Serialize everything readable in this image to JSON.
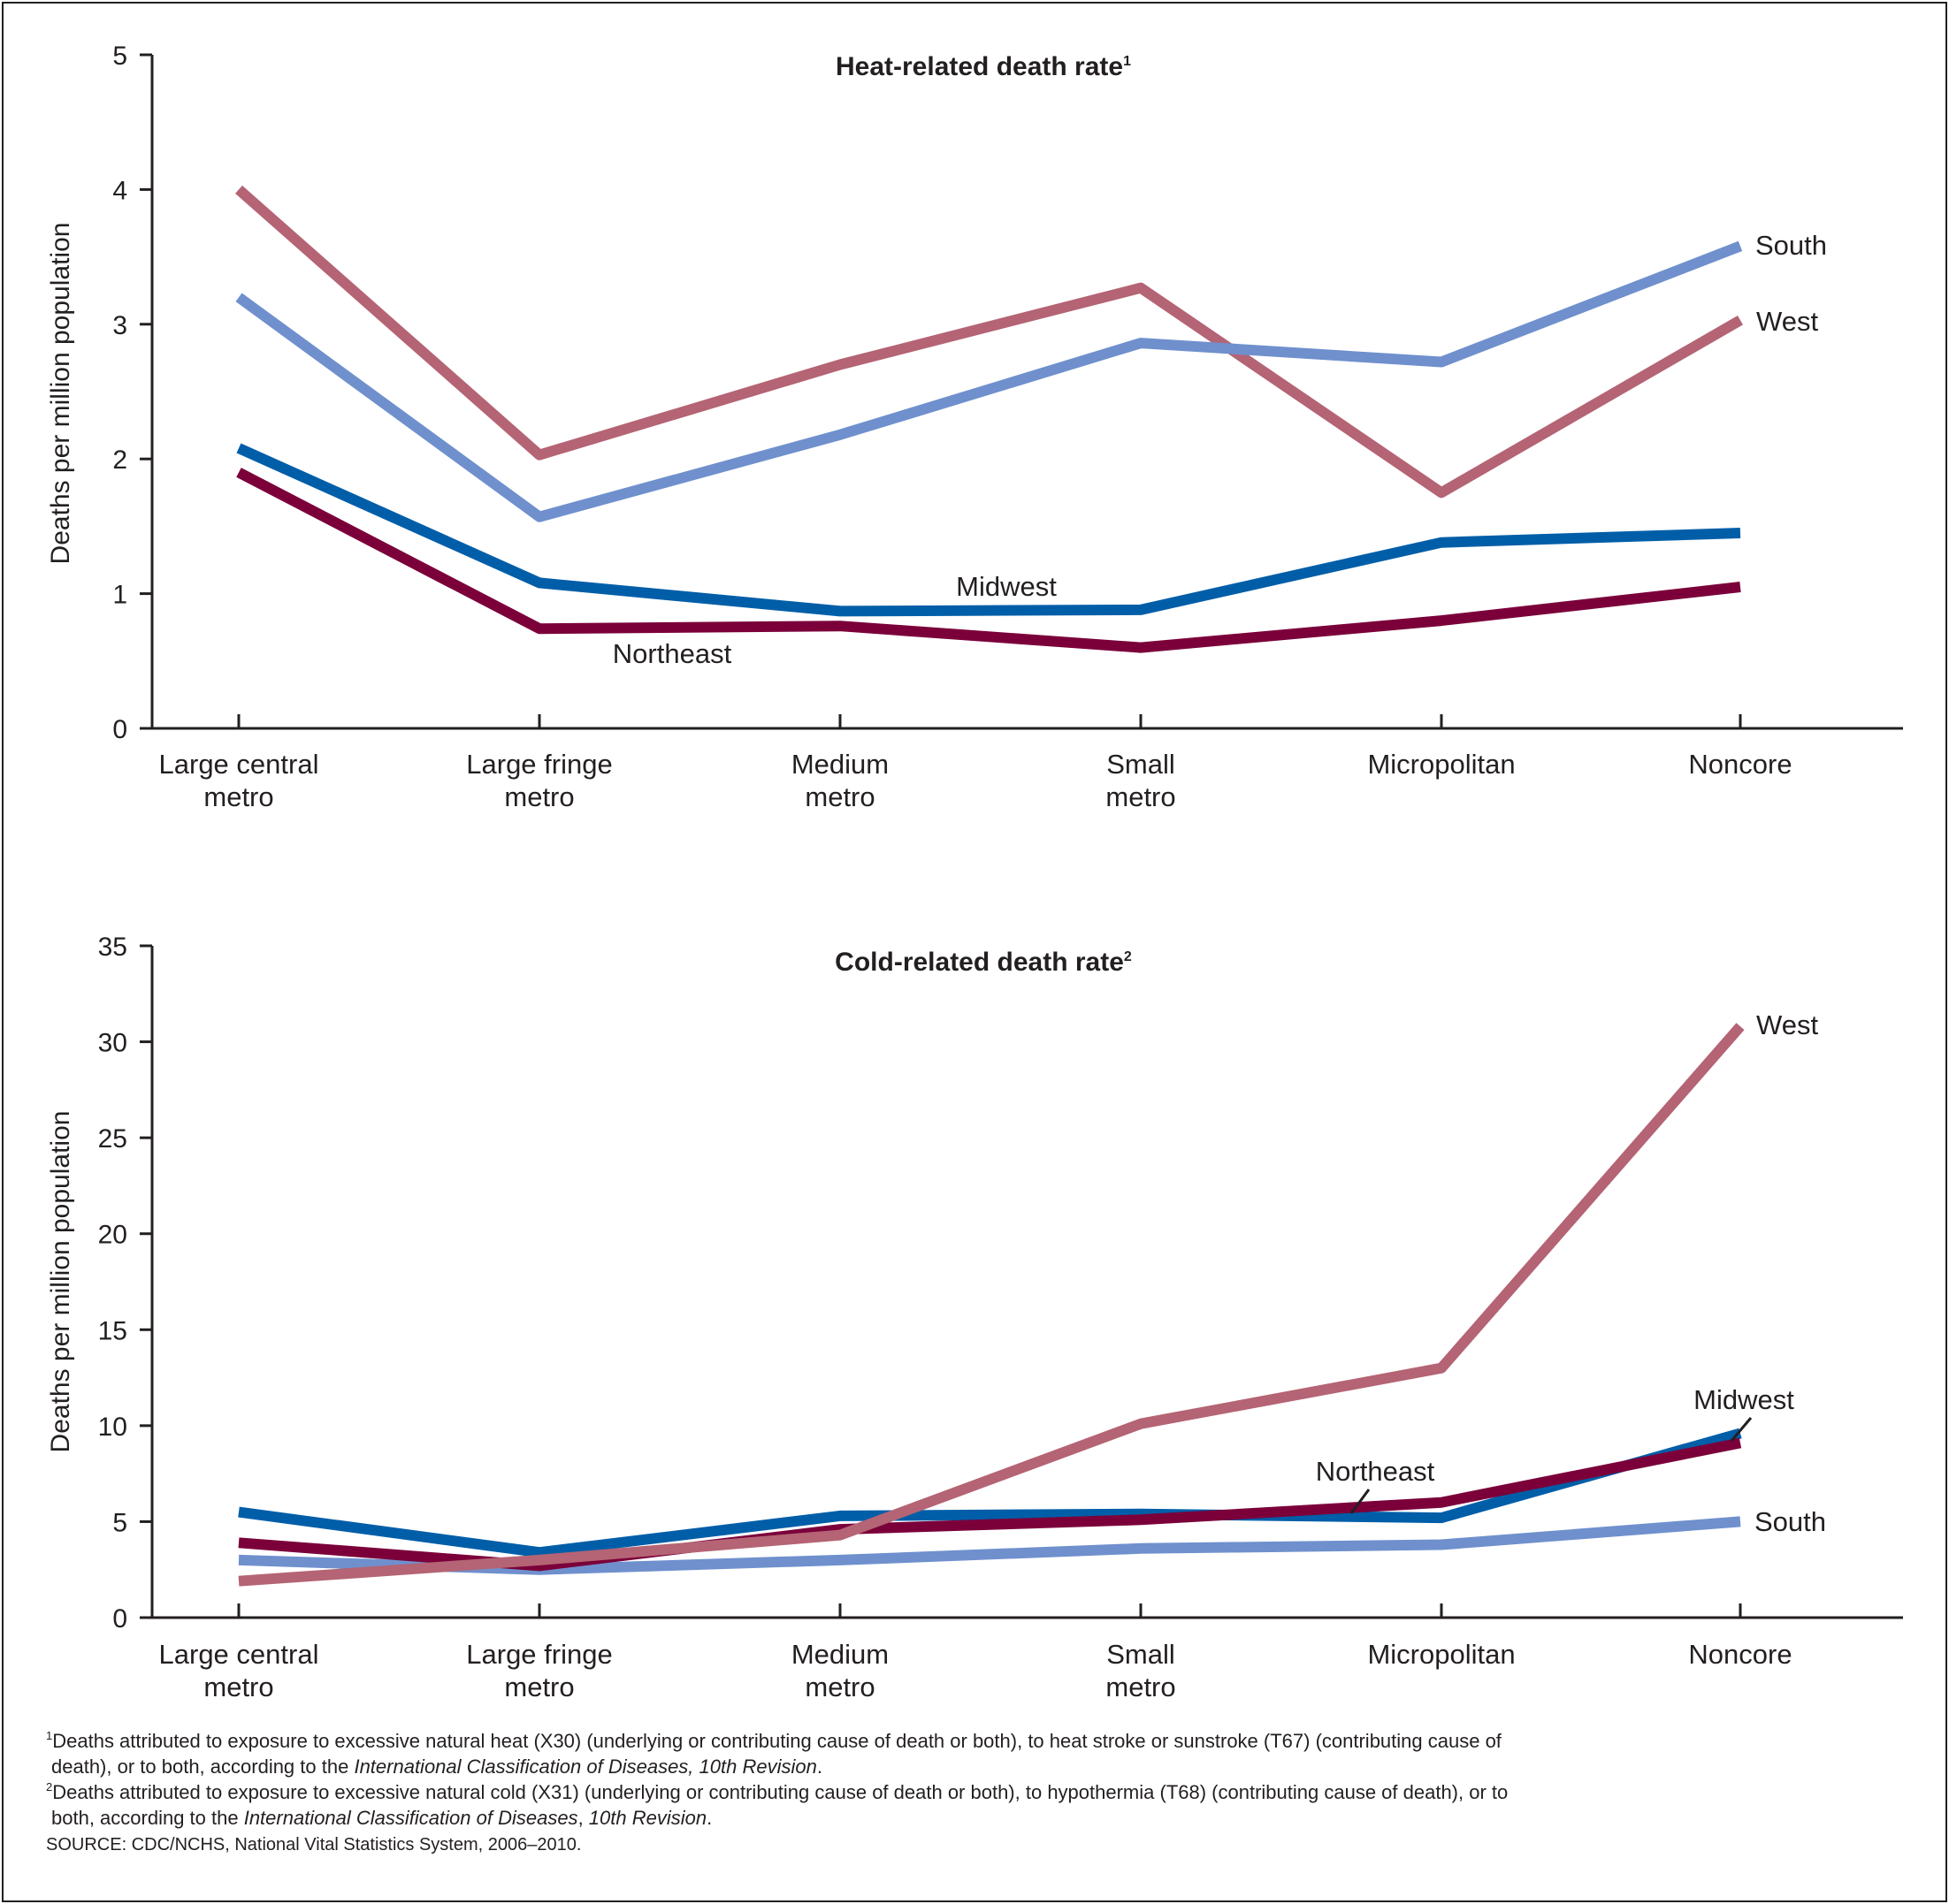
{
  "colors": {
    "Northeast": "#7b003a",
    "Midwest": "#005ea8",
    "South": "#6f90cd",
    "West": "#b46474",
    "axis": "#231f20"
  },
  "chart_data": [
    {
      "type": "line",
      "title": "Heat-related death rate",
      "title_note": "1",
      "ylabel": "Deaths per million population",
      "xlabel": "",
      "ylim": [
        0,
        5
      ],
      "yticks": [
        0,
        1,
        2,
        3,
        4,
        5
      ],
      "categories": [
        [
          "Large central",
          "metro"
        ],
        [
          "Large fringe",
          "metro"
        ],
        [
          "Medium",
          "metro"
        ],
        [
          "Small",
          "metro"
        ],
        [
          "Micropolitan"
        ],
        [
          "Noncore"
        ]
      ],
      "series": [
        {
          "name": "West",
          "values": [
            4.0,
            2.03,
            2.7,
            3.27,
            1.75,
            3.03
          ]
        },
        {
          "name": "South",
          "values": [
            3.2,
            1.57,
            2.18,
            2.86,
            2.72,
            3.58
          ]
        },
        {
          "name": "Midwest",
          "values": [
            2.08,
            1.08,
            0.87,
            0.88,
            1.38,
            1.45
          ]
        },
        {
          "name": "Northeast",
          "values": [
            1.9,
            0.74,
            0.76,
            0.6,
            0.8,
            1.05
          ]
        }
      ],
      "grid": false,
      "legend": "direct labels"
    },
    {
      "type": "line",
      "title": "Cold-related death rate",
      "title_note": "2",
      "ylabel": "Deaths per million population",
      "xlabel": "",
      "ylim": [
        0,
        35
      ],
      "yticks": [
        0,
        5,
        10,
        15,
        20,
        25,
        30,
        35
      ],
      "categories": [
        [
          "Large central",
          "metro"
        ],
        [
          "Large fringe",
          "metro"
        ],
        [
          "Medium",
          "metro"
        ],
        [
          "Small",
          "metro"
        ],
        [
          "Micropolitan"
        ],
        [
          "Noncore"
        ]
      ],
      "series": [
        {
          "name": "South",
          "values": [
            3.0,
            2.5,
            3.0,
            3.6,
            3.8,
            5.0
          ]
        },
        {
          "name": "Midwest",
          "values": [
            5.5,
            3.4,
            5.3,
            5.4,
            5.2,
            9.6
          ]
        },
        {
          "name": "Northeast",
          "values": [
            3.9,
            2.7,
            4.6,
            5.1,
            6.0,
            9.1
          ]
        },
        {
          "name": "West",
          "values": [
            1.9,
            3.0,
            4.3,
            10.1,
            13.0,
            30.8
          ]
        }
      ],
      "grid": false,
      "legend": "direct labels"
    }
  ],
  "footnotes": {
    "fn1": {
      "mark": "1",
      "line1": "Deaths attributed to exposure to excessive natural heat (X30) (underlying or contributing cause of death or both), to heat stroke or sunstroke (T67) (contributing cause of",
      "line2_a": "death), or to both, according to the ",
      "line2_italic": "International Classification of Diseases, 10th Revision",
      "line2_b": "."
    },
    "fn2": {
      "mark": "2",
      "line1": "Deaths attributed to exposure to excessive natural cold (X31) (underlying or contributing cause of death or both), to hypothermia (T68) (contributing cause of death), or to",
      "line2_a": "both, according to the ",
      "line2_italic1": "International Classification of Diseases",
      "line2_mid": ", ",
      "line2_italic2": "10th Revision",
      "line2_b": "."
    },
    "source": "SOURCE: CDC/NCHS, National Vital Statistics System, 2006–2010."
  }
}
